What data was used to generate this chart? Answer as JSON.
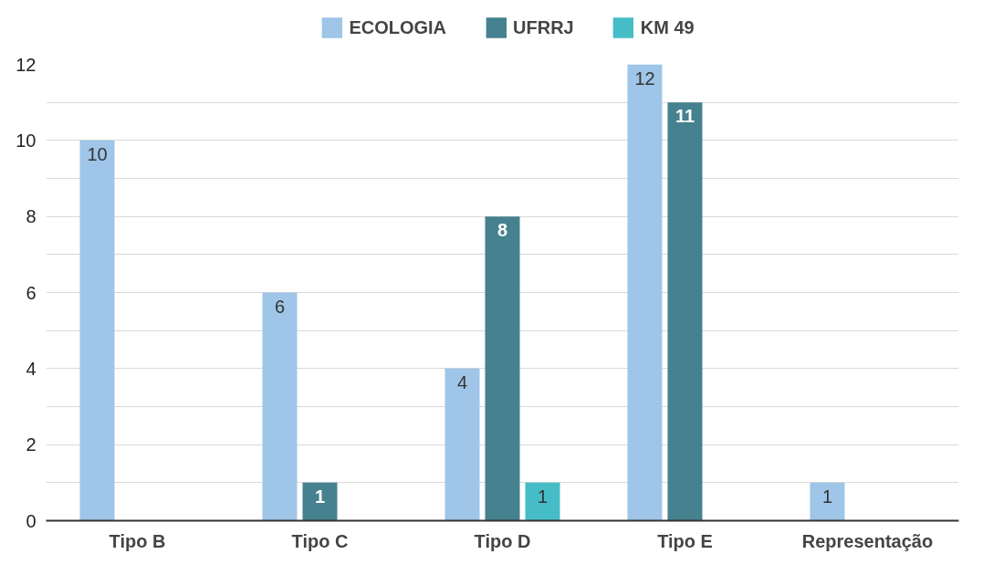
{
  "chart_data": {
    "type": "bar",
    "categories": [
      "Tipo B",
      "Tipo C",
      "Tipo D",
      "Tipo E",
      "Representação"
    ],
    "series": [
      {
        "name": "ECOLOGIA",
        "color": "#9fc5e8",
        "values": [
          10,
          6,
          4,
          12,
          1
        ]
      },
      {
        "name": "UFRRJ",
        "color": "#45818e",
        "values": [
          null,
          1,
          8,
          11,
          null
        ]
      },
      {
        "name": "KM 49",
        "color": "#46bdc6",
        "values": [
          null,
          null,
          1,
          null,
          null
        ]
      }
    ],
    "ylim": [
      0,
      12
    ],
    "yticks": [
      0,
      {
        "value": 1,
        "label": null
      },
      2,
      {
        "value": 3,
        "label": null
      },
      4,
      {
        "value": 5,
        "label": null
      },
      6,
      {
        "value": 7,
        "label": null
      },
      8,
      {
        "value": 9,
        "label": null
      },
      10,
      {
        "value": 11,
        "label": null
      },
      12
    ],
    "grid": "y",
    "legend": "top",
    "data_labels": true
  }
}
